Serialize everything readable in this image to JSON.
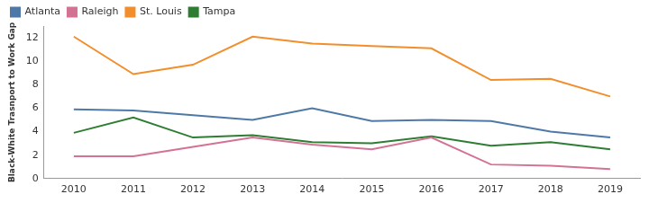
{
  "chart_data": {
    "type": "line",
    "y_label": "Black-White Trasnport to Work Gap",
    "categories": [
      "2010",
      "2011",
      "2012",
      "2013",
      "2014",
      "2015",
      "2016",
      "2017",
      "2018",
      "2019"
    ],
    "series": [
      {
        "name": "Atlanta",
        "color": "#4e79a7",
        "values": [
          5.9,
          5.8,
          5.4,
          5.0,
          6.0,
          4.9,
          5.0,
          4.9,
          4.0,
          3.5
        ]
      },
      {
        "name": "Raleigh",
        "color": "#d37295",
        "values": [
          1.9,
          1.9,
          2.7,
          3.5,
          2.9,
          2.5,
          3.5,
          1.2,
          1.1,
          0.8
        ]
      },
      {
        "name": "St. Louis",
        "color": "#f28e2b",
        "values": [
          12.1,
          8.9,
          9.7,
          12.1,
          11.5,
          11.3,
          11.1,
          8.4,
          8.5,
          7.0
        ]
      },
      {
        "name": "Tampa",
        "color": "#2e7d32",
        "values": [
          3.9,
          5.2,
          3.5,
          3.7,
          3.1,
          3.0,
          3.6,
          2.8,
          3.1,
          2.5
        ]
      }
    ],
    "ylim": [
      0,
      13
    ],
    "yticks": [
      0,
      2,
      4,
      6,
      8,
      10,
      12
    ],
    "grid": false,
    "legend": "top-left"
  }
}
